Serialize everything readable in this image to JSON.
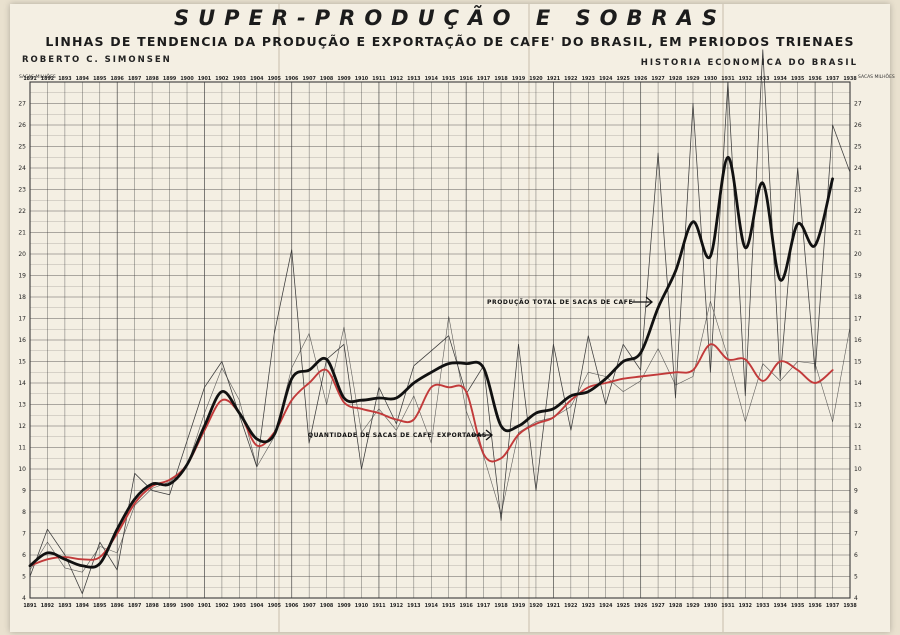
{
  "header": {
    "title": "SUPER-PRODUÇÃO E SOBRAS",
    "subtitle": "LINHAS DE TENDENCIA DA PRODUÇÃO E EXPORTAÇÃO DE CAFE' DO BRASIL, EM PERIODOS TRIENAES",
    "author": "ROBERTO C. SIMONSEN",
    "source": "HISTORIA ECONOMICA DO BRASIL"
  },
  "colors": {
    "production_trend": "#111111",
    "export_trend": "#c23a3a",
    "annual": "#3a3a3a",
    "grid": "#3a3a3a"
  },
  "chart_data": {
    "type": "line",
    "x_ticks": [
      "1891",
      "1892",
      "1893",
      "1894",
      "1895",
      "1896",
      "1897",
      "1898",
      "1899",
      "1900",
      "1901",
      "1902",
      "1903",
      "1904",
      "1905",
      "1906",
      "1907",
      "1908",
      "1909",
      "1910",
      "1911",
      "1912",
      "1913",
      "1914",
      "1915",
      "1916",
      "1917",
      "1918",
      "1919",
      "1920",
      "1921",
      "1922",
      "1923",
      "1924",
      "1925",
      "1926",
      "1927",
      "1928",
      "1929",
      "1930",
      "1931",
      "1932",
      "1933",
      "1934",
      "1935",
      "1936",
      "1937",
      "1938"
    ],
    "y_ticks": [
      "4",
      "5",
      "6",
      "7",
      "8",
      "9",
      "10",
      "11",
      "12",
      "13",
      "14",
      "15",
      "16",
      "17",
      "18",
      "19",
      "20",
      "21",
      "22",
      "23",
      "24",
      "25",
      "26",
      "27"
    ],
    "y_unit_label": "SACAS MILHÕES",
    "ylim": [
      4,
      28
    ],
    "annotations": {
      "production": "PRODUÇÃO TOTAL DE SACAS DE CAFE'",
      "exports": "QUANTIDADE DE SACAS DE CAFE' EXPORTADAS"
    },
    "series": [
      {
        "name": "PRODUÇÃO TOTAL DE SACAS DE CAFE'",
        "style": "thick-black",
        "x": [
          1891,
          1892,
          1893,
          1894,
          1895,
          1896,
          1897,
          1898,
          1899,
          1900,
          1901,
          1902,
          1903,
          1904,
          1905,
          1906,
          1907,
          1908,
          1909,
          1910,
          1911,
          1912,
          1913,
          1914,
          1915,
          1916,
          1917,
          1918,
          1919,
          1920,
          1921,
          1922,
          1923,
          1924,
          1925,
          1926,
          1927,
          1928,
          1929,
          1930,
          1931,
          1932,
          1933,
          1934,
          1935,
          1936,
          1937
        ],
        "values": [
          5.5,
          6.1,
          5.8,
          5.5,
          5.6,
          7.2,
          8.6,
          9.3,
          9.3,
          10.2,
          12.0,
          13.6,
          12.6,
          11.4,
          11.6,
          14.2,
          14.6,
          15.1,
          13.3,
          13.2,
          13.3,
          13.3,
          14.0,
          14.5,
          14.9,
          14.9,
          14.7,
          12.0,
          12.0,
          12.6,
          12.8,
          13.4,
          13.6,
          14.2,
          15.0,
          15.4,
          17.5,
          19.2,
          21.5,
          19.9,
          24.5,
          20.3,
          23.3,
          18.8,
          21.4,
          20.4,
          23.5
        ]
      },
      {
        "name": "QUANTIDADE DE SACAS DE CAFE' EXPORTADAS",
        "style": "red",
        "x": [
          1891,
          1892,
          1893,
          1894,
          1895,
          1896,
          1897,
          1898,
          1899,
          1900,
          1901,
          1902,
          1903,
          1904,
          1905,
          1906,
          1907,
          1908,
          1909,
          1910,
          1911,
          1912,
          1913,
          1914,
          1915,
          1916,
          1917,
          1918,
          1919,
          1920,
          1921,
          1922,
          1923,
          1924,
          1925,
          1926,
          1927,
          1928,
          1929,
          1930,
          1931,
          1932,
          1933,
          1934,
          1935,
          1936,
          1937
        ],
        "values": [
          5.5,
          5.8,
          5.9,
          5.8,
          5.9,
          7.0,
          8.4,
          9.2,
          9.5,
          10.2,
          11.8,
          13.2,
          12.6,
          11.1,
          11.7,
          13.2,
          14.0,
          14.6,
          13.1,
          12.8,
          12.6,
          12.3,
          12.3,
          13.8,
          13.8,
          13.6,
          10.7,
          10.5,
          11.6,
          12.1,
          12.4,
          13.2,
          13.8,
          14.0,
          14.2,
          14.3,
          14.4,
          14.5,
          14.6,
          15.8,
          15.1,
          15.1,
          14.1,
          15.0,
          14.6,
          14.0,
          14.6
        ]
      },
      {
        "name": "",
        "style": "thin-annual-production",
        "x": [
          1891,
          1892,
          1893,
          1894,
          1895,
          1896,
          1897,
          1898,
          1899,
          1900,
          1901,
          1902,
          1903,
          1904,
          1905,
          1906,
          1907,
          1908,
          1909,
          1910,
          1911,
          1912,
          1913,
          1914,
          1915,
          1916,
          1917,
          1918,
          1919,
          1920,
          1921,
          1922,
          1923,
          1924,
          1925,
          1926,
          1927,
          1928,
          1929,
          1930,
          1931,
          1932,
          1933,
          1934,
          1935,
          1936,
          1937,
          1938
        ],
        "values": [
          5.0,
          7.2,
          6.0,
          4.2,
          6.6,
          5.3,
          9.8,
          9.0,
          8.8,
          11.3,
          13.8,
          15.0,
          12.5,
          10.1,
          16.3,
          20.2,
          11.2,
          15.1,
          15.8,
          10.0,
          13.8,
          12.1,
          14.8,
          15.5,
          16.2,
          13.5,
          14.8,
          7.6,
          15.8,
          9.0,
          15.8,
          11.8,
          16.2,
          13.0,
          15.8,
          14.6,
          24.7,
          13.3,
          27.0,
          14.5,
          28.0,
          13.4,
          29.5,
          14.2,
          24.0,
          14.5,
          26.0,
          23.8
        ]
      },
      {
        "name": "",
        "style": "thin-annual-exports",
        "x": [
          1891,
          1892,
          1893,
          1894,
          1895,
          1896,
          1897,
          1898,
          1899,
          1900,
          1901,
          1902,
          1903,
          1904,
          1905,
          1906,
          1907,
          1908,
          1909,
          1910,
          1911,
          1912,
          1913,
          1914,
          1915,
          1916,
          1917,
          1918,
          1919,
          1920,
          1921,
          1922,
          1923,
          1924,
          1925,
          1926,
          1927,
          1928,
          1929,
          1930,
          1931,
          1932,
          1933,
          1934,
          1935,
          1936,
          1937,
          1938
        ],
        "values": [
          5.3,
          6.6,
          5.4,
          5.2,
          6.4,
          6.1,
          8.3,
          9.1,
          9.4,
          10.1,
          12.6,
          14.7,
          13.2,
          10.1,
          11.5,
          14.7,
          16.3,
          13.0,
          16.6,
          11.7,
          12.8,
          11.8,
          13.4,
          11.2,
          17.1,
          12.7,
          10.6,
          7.9,
          11.7,
          12.2,
          12.4,
          12.9,
          14.5,
          14.3,
          13.6,
          14.1,
          15.6,
          13.9,
          14.3,
          17.8,
          15.2,
          12.2,
          14.9,
          14.1,
          15.0,
          14.9,
          12.2,
          16.6
        ]
      }
    ]
  }
}
